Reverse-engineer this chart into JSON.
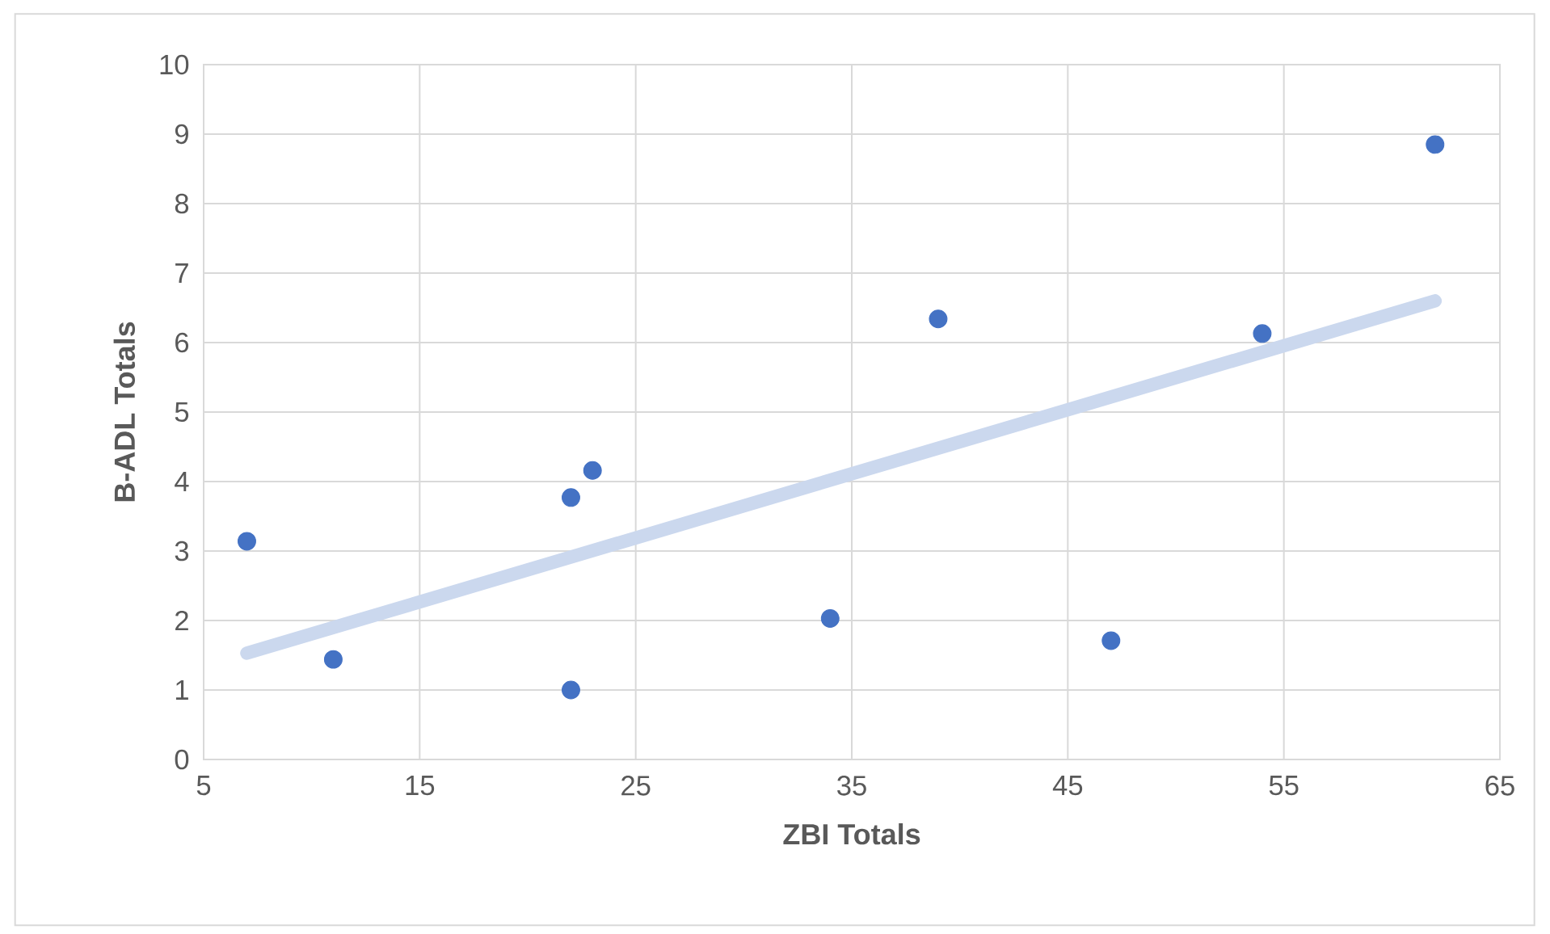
{
  "chart_data": {
    "type": "scatter",
    "xlabel": "ZBI Totals",
    "ylabel": "B-ADL Totals",
    "xlim": [
      5,
      65
    ],
    "xticks": [
      5,
      15,
      25,
      35,
      45,
      55,
      65
    ],
    "ylim": [
      0,
      10
    ],
    "yticks": [
      0,
      1,
      2,
      3,
      4,
      5,
      6,
      7,
      8,
      9,
      10
    ],
    "grid": true,
    "series": [
      {
        "marker": "circle",
        "color": "#4472c4",
        "x": [
          7,
          11,
          22,
          22,
          23,
          34,
          39,
          47,
          54,
          62
        ],
        "values": [
          3.14,
          1.44,
          1.0,
          3.77,
          4.16,
          2.03,
          6.34,
          1.71,
          6.13,
          8.85
        ]
      },
      {
        "type": "line",
        "color": "#cbd8ee",
        "x": [
          7,
          62
        ],
        "values": [
          1.53,
          6.6
        ]
      }
    ]
  }
}
